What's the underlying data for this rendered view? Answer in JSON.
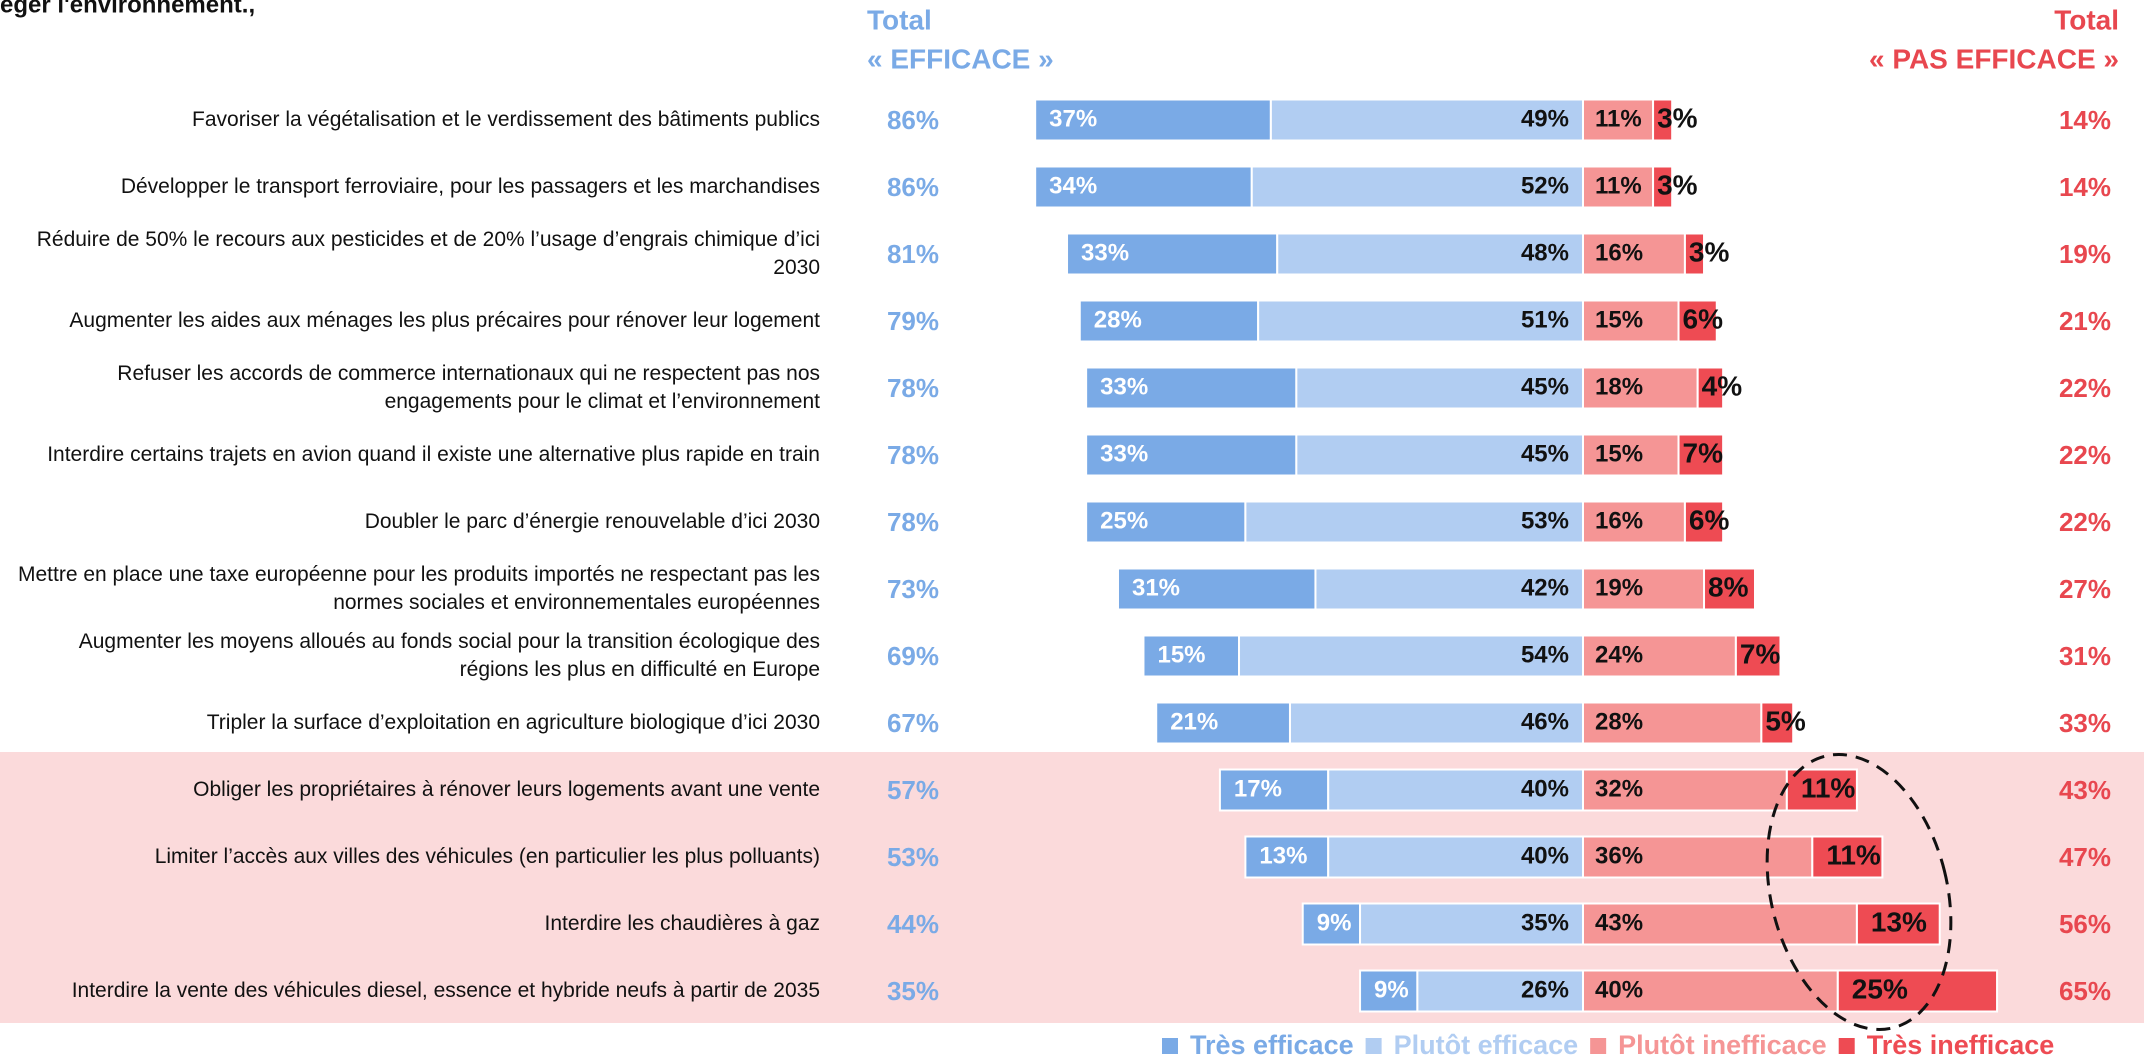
{
  "chart_data": {
    "type": "bar",
    "stacked": "diverging",
    "title": "éger l'environnement.,",
    "header_efficace": [
      "Total",
      "« EFFICACE »"
    ],
    "header_pas_efficace": [
      "Total",
      "« PAS EFFICACE »"
    ],
    "categories": [
      "Favoriser la végétalisation et le verdissement des bâtiments publics",
      "Développer le transport ferroviaire, pour les passagers et les marchandises",
      "Réduire de 50% le recours aux pesticides et de 20% l’usage d’engrais chimique d’ici 2030",
      "Augmenter les aides aux ménages les plus précaires pour rénover leur logement",
      "Refuser les accords de commerce internationaux qui ne respectent pas nos engagements pour le climat et l’environnement",
      "Interdire certains trajets en avion quand il existe une alternative plus rapide en train",
      "Doubler le parc d’énergie renouvelable d’ici 2030",
      "Mettre en place une taxe européenne pour les produits importés ne respectant pas les normes sociales et environnementales européennes",
      "Augmenter les moyens alloués au fonds social pour la transition écologique des régions les plus en difficulté en Europe",
      "Tripler la surface d’exploitation en agriculture biologique d’ici 2030",
      "Obliger les propriétaires à rénover leurs logements avant une vente",
      "Limiter l’accès aux villes des véhicules (en particulier les plus polluants)",
      "Interdire les chaudières à gaz",
      "Interdire la vente des véhicules diesel, essence et hybride neufs à partir de 2035"
    ],
    "series": [
      {
        "name": "Très efficace",
        "color": "#7aaae6",
        "values": [
          37,
          34,
          33,
          28,
          33,
          33,
          25,
          31,
          15,
          21,
          17,
          13,
          9,
          9
        ],
        "value_labels": [
          "37%",
          "34%",
          "33%",
          "28%",
          "33%",
          "33%",
          "25%",
          "31%",
          "15%",
          "21%",
          "17%",
          "13%",
          "9%",
          "9%"
        ]
      },
      {
        "name": "Plutôt efficace",
        "color": "#b1cdf2",
        "values": [
          49,
          52,
          48,
          51,
          45,
          45,
          53,
          42,
          54,
          46,
          40,
          40,
          35,
          26
        ],
        "value_labels": [
          "49%",
          "52%",
          "48%",
          "51%",
          "45%",
          "45%",
          "53%",
          "42%",
          "54%",
          "46%",
          "40%",
          "40%",
          "35%",
          "26%"
        ]
      },
      {
        "name": "Plutôt inefficace",
        "color": "#f59595",
        "values": [
          11,
          11,
          16,
          15,
          18,
          15,
          16,
          19,
          24,
          28,
          32,
          36,
          43,
          40
        ],
        "value_labels": [
          "11%",
          "11%",
          "16%",
          "15%",
          "18%",
          "15%",
          "16%",
          "19%",
          "24%",
          "28%",
          "32%",
          "36%",
          "43%",
          "40%"
        ]
      },
      {
        "name": "Très inefficace",
        "color": "#ee4b53",
        "values": [
          3,
          3,
          3,
          6,
          4,
          7,
          6,
          8,
          7,
          5,
          11,
          11,
          13,
          25
        ],
        "value_labels": [
          "3%",
          "3%",
          "3%",
          "6%",
          "4%",
          "7%",
          "6%",
          "8%",
          "7%",
          "5%",
          "11%",
          "11%",
          "13%",
          "25%"
        ]
      }
    ],
    "total_efficace": {
      "color": "#7aaae6",
      "values": [
        86,
        86,
        81,
        79,
        78,
        78,
        78,
        73,
        69,
        67,
        57,
        53,
        44,
        35
      ],
      "value_labels": [
        "86%",
        "86%",
        "81%",
        "79%",
        "78%",
        "78%",
        "78%",
        "73%",
        "69%",
        "67%",
        "57%",
        "53%",
        "44%",
        "35%"
      ]
    },
    "total_pas_efficace": {
      "color": "#e8474f",
      "values": [
        14,
        14,
        19,
        21,
        22,
        22,
        22,
        27,
        31,
        33,
        43,
        47,
        56,
        65
      ],
      "value_labels": [
        "14%",
        "14%",
        "19%",
        "21%",
        "22%",
        "22%",
        "22%",
        "27%",
        "31%",
        "33%",
        "43%",
        "47%",
        "56%",
        "65%"
      ]
    },
    "legend": "bottom"
  }
}
